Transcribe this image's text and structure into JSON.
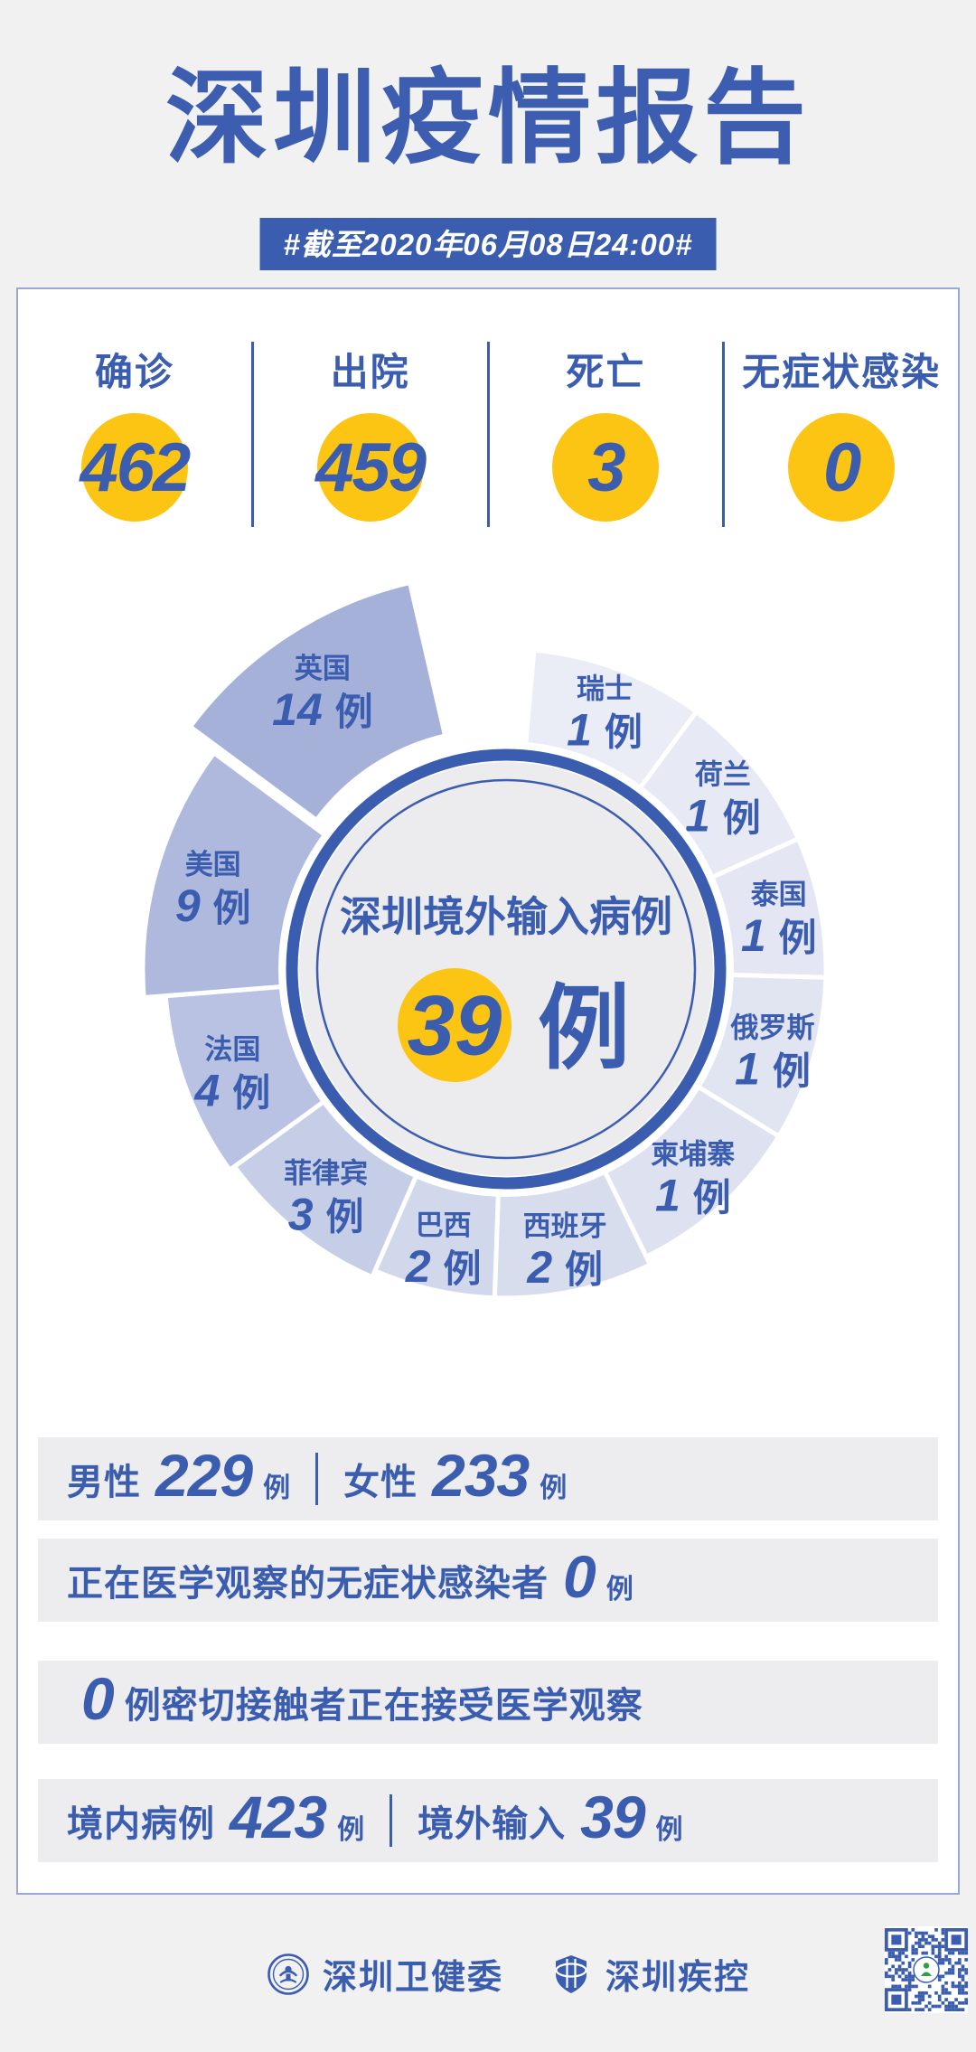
{
  "colors": {
    "accent": "#3b5db0",
    "yellow": "#fdc513",
    "page_bg": "#f1f1f2",
    "band_bg": "#ededef",
    "ring_gray": "#ececee",
    "wedge_gap": "#ffffff"
  },
  "header": {
    "title": "深圳疫情报告",
    "date_badge": "#截至2020年06月08日24:00#"
  },
  "stats": {
    "items": [
      {
        "label": "确诊",
        "value": "462"
      },
      {
        "label": "出院",
        "value": "459"
      },
      {
        "label": "死亡",
        "value": "3"
      },
      {
        "label": "无症状感染",
        "value": "0"
      }
    ]
  },
  "chart_data": {
    "type": "pie",
    "variant": "nightingale-rose",
    "title": "深圳境外输入病例",
    "total_value": "39",
    "unit": "例",
    "legend_position": "around-wedges",
    "segments": [
      {
        "label": "瑞士",
        "value": 1,
        "a0": 5,
        "a1": 36.5,
        "color": "#eaecf6"
      },
      {
        "label": "荷兰",
        "value": 1,
        "a0": 36.5,
        "a1": 66,
        "color": "#e7eaf4"
      },
      {
        "label": "泰国",
        "value": 1,
        "a0": 66,
        "a1": 91.5,
        "color": "#e4e7f3"
      },
      {
        "label": "俄罗斯",
        "value": 1,
        "a0": 91.5,
        "a1": 121.5,
        "color": "#e1e5f2"
      },
      {
        "label": "柬埔寨",
        "value": 1,
        "a0": 121.5,
        "a1": 154,
        "color": "#dde1f0"
      },
      {
        "label": "西班牙",
        "value": 2,
        "a0": 154,
        "a1": 182,
        "color": "#d8ddee"
      },
      {
        "label": "巴西",
        "value": 2,
        "a0": 182,
        "a1": 203.5,
        "color": "#d2d8ec"
      },
      {
        "label": "菲律宾",
        "value": 3,
        "a0": 203.5,
        "a1": 234,
        "color": "#c5cde7"
      },
      {
        "label": "法国",
        "value": 4,
        "a0": 234,
        "a1": 265.5,
        "color": "#b9c2e2"
      },
      {
        "label": "美国",
        "value": 9,
        "a0": 265.5,
        "a1": 306.5,
        "color": "#aeb9dd"
      },
      {
        "label": "英国",
        "value": 14,
        "a0": 306.5,
        "a1": 347,
        "color": "#a5b1d9",
        "exploded": true
      }
    ]
  },
  "rows": [
    {
      "segments": [
        {
          "kind": "label",
          "text": "男性"
        },
        {
          "kind": "big",
          "text": "229"
        },
        {
          "kind": "unit",
          "text": "例"
        },
        {
          "kind": "divider"
        },
        {
          "kind": "label",
          "text": "女性"
        },
        {
          "kind": "big",
          "text": "233"
        },
        {
          "kind": "unit",
          "text": "例"
        }
      ]
    },
    {
      "segments": [
        {
          "kind": "label",
          "text": "正在医学观察的无症状感染者"
        },
        {
          "kind": "big",
          "text": "0"
        },
        {
          "kind": "unit",
          "text": "例"
        }
      ]
    },
    {
      "segments": [
        {
          "kind": "big",
          "text": "0"
        },
        {
          "kind": "label",
          "text": "例密切接触者正在接受医学观察"
        }
      ]
    },
    {
      "segments": [
        {
          "kind": "label",
          "text": "境内病例"
        },
        {
          "kind": "big",
          "text": "423"
        },
        {
          "kind": "unit",
          "text": "例"
        },
        {
          "kind": "divider"
        },
        {
          "kind": "label",
          "text": "境外输入"
        },
        {
          "kind": "big",
          "text": "39"
        },
        {
          "kind": "unit",
          "text": "例"
        }
      ]
    }
  ],
  "footer": {
    "org1": "深圳卫健委",
    "org2": "深圳疾控"
  }
}
